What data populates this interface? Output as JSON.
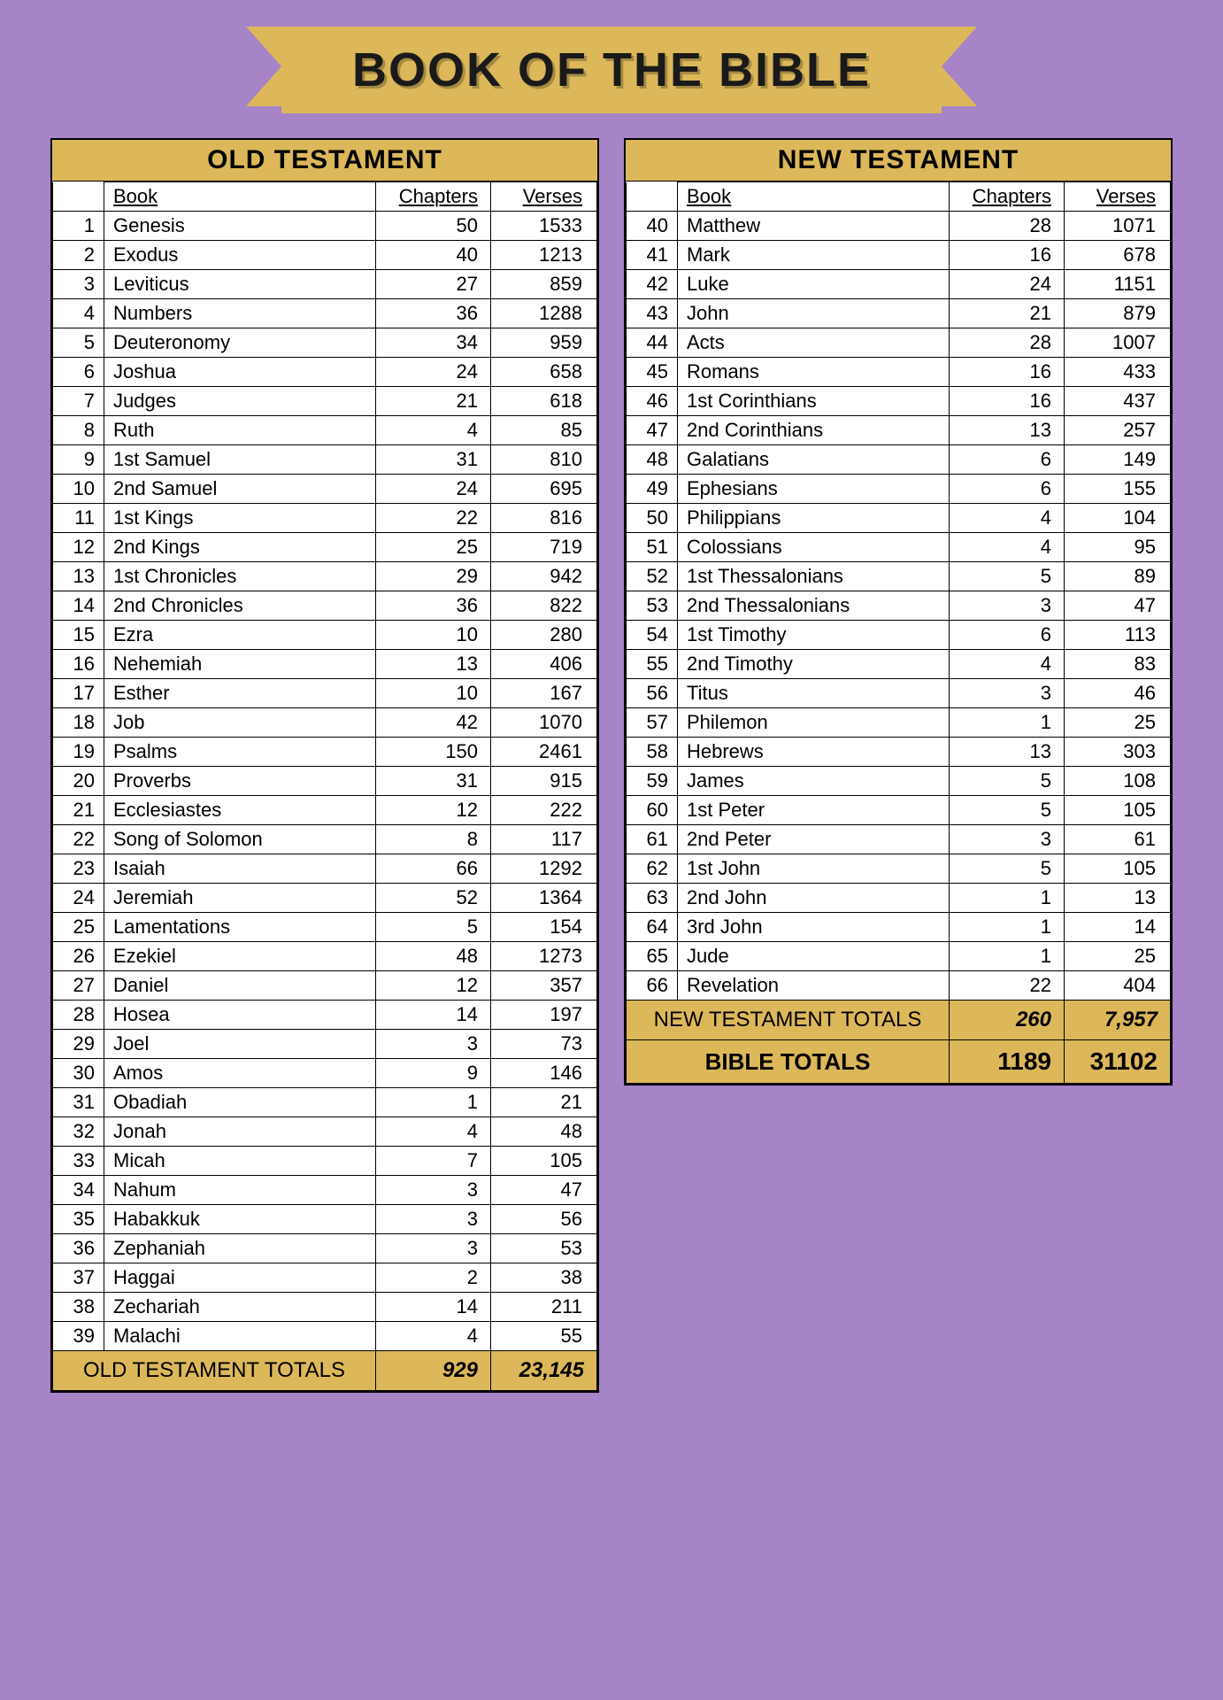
{
  "title": "BOOK OF THE BIBLE",
  "colors": {
    "background": "#a783c7",
    "banner": "#dcb85a",
    "panel_bg": "#ffffff",
    "border": "#000000",
    "text": "#1a1a1a"
  },
  "typography": {
    "title_fontsize": 54,
    "panel_title_fontsize": 30,
    "body_fontsize": 22,
    "totals_fontsize": 24
  },
  "headers": {
    "book": "Book",
    "chapters": "Chapters",
    "verses": "Verses"
  },
  "old": {
    "title": "OLD TESTAMENT",
    "rows": [
      {
        "i": "1",
        "name": "Genesis",
        "ch": "50",
        "v": "1533"
      },
      {
        "i": "2",
        "name": "Exodus",
        "ch": "40",
        "v": "1213"
      },
      {
        "i": "3",
        "name": "Leviticus",
        "ch": "27",
        "v": "859"
      },
      {
        "i": "4",
        "name": "Numbers",
        "ch": "36",
        "v": "1288"
      },
      {
        "i": "5",
        "name": "Deuteronomy",
        "ch": "34",
        "v": "959"
      },
      {
        "i": "6",
        "name": "Joshua",
        "ch": "24",
        "v": "658"
      },
      {
        "i": "7",
        "name": "Judges",
        "ch": "21",
        "v": "618"
      },
      {
        "i": "8",
        "name": "Ruth",
        "ch": "4",
        "v": "85"
      },
      {
        "i": "9",
        "name": "1st Samuel",
        "ch": "31",
        "v": "810"
      },
      {
        "i": "10",
        "name": "2nd Samuel",
        "ch": "24",
        "v": "695"
      },
      {
        "i": "11",
        "name": "1st Kings",
        "ch": "22",
        "v": "816"
      },
      {
        "i": "12",
        "name": "2nd Kings",
        "ch": "25",
        "v": "719"
      },
      {
        "i": "13",
        "name": "1st Chronicles",
        "ch": "29",
        "v": "942"
      },
      {
        "i": "14",
        "name": "2nd Chronicles",
        "ch": "36",
        "v": "822"
      },
      {
        "i": "15",
        "name": "Ezra",
        "ch": "10",
        "v": "280"
      },
      {
        "i": "16",
        "name": "Nehemiah",
        "ch": "13",
        "v": "406"
      },
      {
        "i": "17",
        "name": "Esther",
        "ch": "10",
        "v": "167"
      },
      {
        "i": "18",
        "name": "Job",
        "ch": "42",
        "v": "1070"
      },
      {
        "i": "19",
        "name": "Psalms",
        "ch": "150",
        "v": "2461"
      },
      {
        "i": "20",
        "name": "Proverbs",
        "ch": "31",
        "v": "915"
      },
      {
        "i": "21",
        "name": "Ecclesiastes",
        "ch": "12",
        "v": "222"
      },
      {
        "i": "22",
        "name": "Song of Solomon",
        "ch": "8",
        "v": "117"
      },
      {
        "i": "23",
        "name": "Isaiah",
        "ch": "66",
        "v": "1292"
      },
      {
        "i": "24",
        "name": "Jeremiah",
        "ch": "52",
        "v": "1364"
      },
      {
        "i": "25",
        "name": "Lamentations",
        "ch": "5",
        "v": "154"
      },
      {
        "i": "26",
        "name": "Ezekiel",
        "ch": "48",
        "v": "1273"
      },
      {
        "i": "27",
        "name": "Daniel",
        "ch": "12",
        "v": "357"
      },
      {
        "i": "28",
        "name": "Hosea",
        "ch": "14",
        "v": "197"
      },
      {
        "i": "29",
        "name": "Joel",
        "ch": "3",
        "v": "73"
      },
      {
        "i": "30",
        "name": "Amos",
        "ch": "9",
        "v": "146"
      },
      {
        "i": "31",
        "name": "Obadiah",
        "ch": "1",
        "v": "21"
      },
      {
        "i": "32",
        "name": "Jonah",
        "ch": "4",
        "v": "48"
      },
      {
        "i": "33",
        "name": "Micah",
        "ch": "7",
        "v": "105"
      },
      {
        "i": "34",
        "name": "Nahum",
        "ch": "3",
        "v": "47"
      },
      {
        "i": "35",
        "name": "Habakkuk",
        "ch": "3",
        "v": "56"
      },
      {
        "i": "36",
        "name": "Zephaniah",
        "ch": "3",
        "v": "53"
      },
      {
        "i": "37",
        "name": "Haggai",
        "ch": "2",
        "v": "38"
      },
      {
        "i": "38",
        "name": "Zechariah",
        "ch": "14",
        "v": "211"
      },
      {
        "i": "39",
        "name": "Malachi",
        "ch": "4",
        "v": "55"
      }
    ],
    "totals": {
      "label": "OLD TESTAMENT TOTALS",
      "ch": "929",
      "v": "23,145"
    }
  },
  "new": {
    "title": "NEW TESTAMENT",
    "rows": [
      {
        "i": "40",
        "name": "Matthew",
        "ch": "28",
        "v": "1071"
      },
      {
        "i": "41",
        "name": "Mark",
        "ch": "16",
        "v": "678"
      },
      {
        "i": "42",
        "name": "Luke",
        "ch": "24",
        "v": "1151"
      },
      {
        "i": "43",
        "name": "John",
        "ch": "21",
        "v": "879"
      },
      {
        "i": "44",
        "name": "Acts",
        "ch": "28",
        "v": "1007"
      },
      {
        "i": "45",
        "name": "Romans",
        "ch": "16",
        "v": "433"
      },
      {
        "i": "46",
        "name": "1st Corinthians",
        "ch": "16",
        "v": "437"
      },
      {
        "i": "47",
        "name": "2nd Corinthians",
        "ch": "13",
        "v": "257"
      },
      {
        "i": "48",
        "name": "Galatians",
        "ch": "6",
        "v": "149"
      },
      {
        "i": "49",
        "name": "Ephesians",
        "ch": "6",
        "v": "155"
      },
      {
        "i": "50",
        "name": "Philippians",
        "ch": "4",
        "v": "104"
      },
      {
        "i": "51",
        "name": "Colossians",
        "ch": "4",
        "v": "95"
      },
      {
        "i": "52",
        "name": "1st Thessalonians",
        "ch": "5",
        "v": "89"
      },
      {
        "i": "53",
        "name": "2nd Thessalonians",
        "ch": "3",
        "v": "47"
      },
      {
        "i": "54",
        "name": "1st Timothy",
        "ch": "6",
        "v": "113"
      },
      {
        "i": "55",
        "name": "2nd Timothy",
        "ch": "4",
        "v": "83"
      },
      {
        "i": "56",
        "name": "Titus",
        "ch": "3",
        "v": "46"
      },
      {
        "i": "57",
        "name": "Philemon",
        "ch": "1",
        "v": "25"
      },
      {
        "i": "58",
        "name": "Hebrews",
        "ch": "13",
        "v": "303"
      },
      {
        "i": "59",
        "name": "James",
        "ch": "5",
        "v": "108"
      },
      {
        "i": "60",
        "name": "1st Peter",
        "ch": "5",
        "v": "105"
      },
      {
        "i": "61",
        "name": "2nd Peter",
        "ch": "3",
        "v": "61"
      },
      {
        "i": "62",
        "name": "1st John",
        "ch": "5",
        "v": "105"
      },
      {
        "i": "63",
        "name": "2nd John",
        "ch": "1",
        "v": "13"
      },
      {
        "i": "64",
        "name": "3rd John",
        "ch": "1",
        "v": "14"
      },
      {
        "i": "65",
        "name": "Jude",
        "ch": "1",
        "v": "25"
      },
      {
        "i": "66",
        "name": "Revelation",
        "ch": "22",
        "v": "404"
      }
    ],
    "totals": {
      "label": "NEW TESTAMENT TOTALS",
      "ch": "260",
      "v": "7,957"
    },
    "bible_totals": {
      "label": "BIBLE TOTALS",
      "ch": "1189",
      "v": "31102"
    }
  }
}
